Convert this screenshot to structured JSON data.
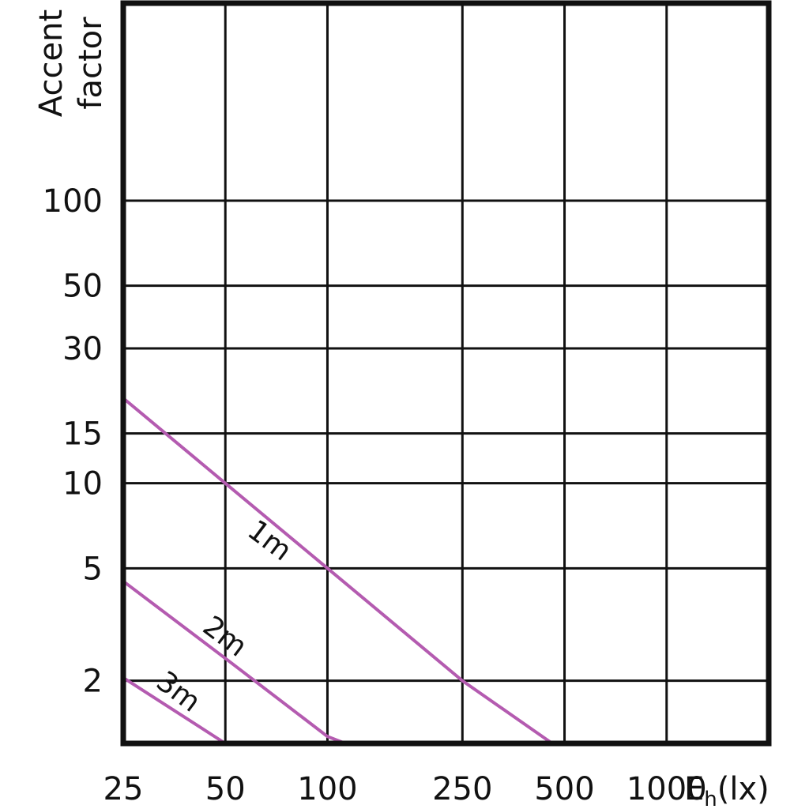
{
  "chart_data": {
    "type": "line",
    "x_scale": "log",
    "y_scale": "log",
    "xlim": [
      25,
      2000
    ],
    "ylim": [
      1.2,
      500
    ],
    "x_ticks": [
      25,
      50,
      100,
      250,
      500,
      1000
    ],
    "x_tick_labels": [
      "25",
      "50",
      "100",
      "250",
      "500",
      "1000"
    ],
    "y_ticks": [
      2,
      5,
      10,
      15,
      30,
      50,
      100
    ],
    "y_tick_labels": [
      "2",
      "5",
      "10",
      "15",
      "30",
      "50",
      "100"
    ],
    "xlabel_main": "E",
    "xlabel_sub": "h",
    "xlabel_unit": "(lx)",
    "ylabel_line1": "Accent",
    "ylabel_line2": "factor",
    "grid": true,
    "line_color": "#b45bb0",
    "series": [
      {
        "name": "1m",
        "x": [
          25,
          50,
          100,
          250,
          460
        ],
        "y": [
          20,
          10,
          5,
          2,
          1.2
        ]
      },
      {
        "name": "2m",
        "x": [
          25,
          50,
          100,
          113
        ],
        "y": [
          4.5,
          2.4,
          1.27,
          1.2
        ]
      },
      {
        "name": "3m",
        "x": [
          25,
          50
        ],
        "y": [
          2.05,
          1.2
        ]
      }
    ]
  }
}
